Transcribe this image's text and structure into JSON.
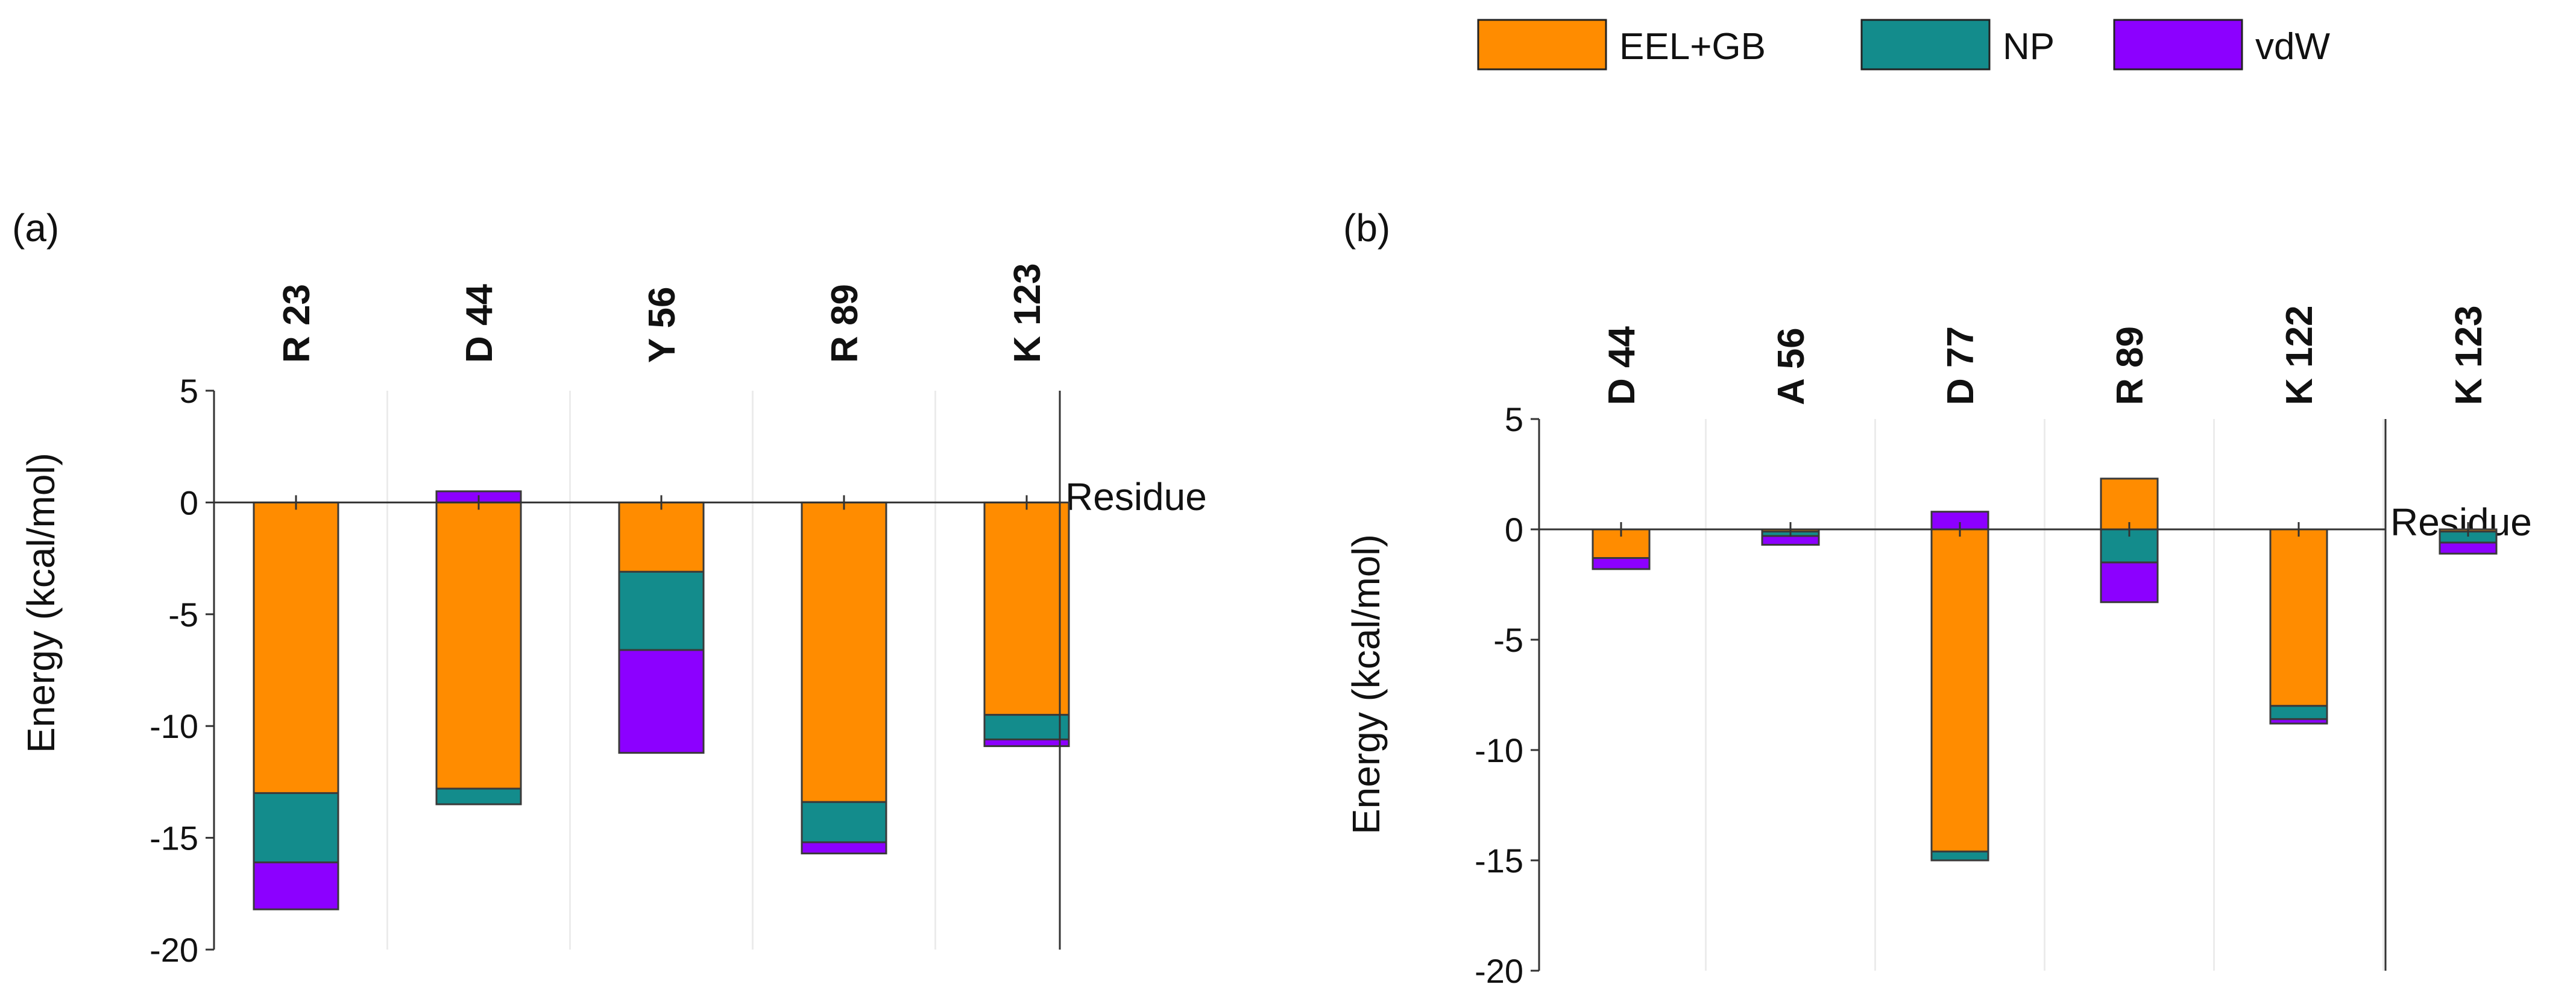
{
  "colors": {
    "EEL+GB": "#FF8C00",
    "NP": "#138C8C",
    "vdW": "#8C00FF"
  },
  "legend": {
    "entries": [
      "EEL+GB",
      "NP",
      "vdW"
    ]
  },
  "chart_data": [
    {
      "type": "bar",
      "stacked": true,
      "panel_label": "(a)",
      "title": "",
      "xlabel": "Residue",
      "ylabel": "Energy (kcal/mol)",
      "ylim": [
        -20,
        5
      ],
      "yticks": [
        5,
        0,
        -5,
        -10,
        -15,
        -20
      ],
      "grid": false,
      "categories": [
        "R 23",
        "D 44",
        "Y 56",
        "R 89",
        "K 123"
      ],
      "series": [
        {
          "name": "EEL+GB",
          "values": [
            -13.0,
            -12.8,
            -3.1,
            -13.4,
            -9.5
          ]
        },
        {
          "name": "NP",
          "values": [
            -3.1,
            -0.7,
            -3.5,
            -1.8,
            -1.1
          ]
        },
        {
          "name": "vdW",
          "values": [
            -2.1,
            0.5,
            -4.6,
            -0.5,
            -0.3
          ]
        }
      ]
    },
    {
      "type": "bar",
      "stacked": true,
      "panel_label": "(b)",
      "title": "",
      "xlabel": "Residue",
      "ylabel": "Energy (kcal/mol)",
      "ylim": [
        -20,
        5
      ],
      "yticks": [
        5,
        0,
        -5,
        -10,
        -15,
        -20
      ],
      "grid": false,
      "categories": [
        "D 44",
        "A 56",
        "D 77",
        "R 89",
        "K 122",
        "K 123"
      ],
      "series": [
        {
          "name": "EEL+GB",
          "values": [
            -1.3,
            -0.1,
            -14.6,
            2.3,
            -8.0,
            -0.1
          ]
        },
        {
          "name": "NP",
          "values": [
            0,
            -0.2,
            -0.4,
            -1.5,
            -0.6,
            -0.5
          ]
        },
        {
          "name": "vdW",
          "values": [
            -0.5,
            -0.4,
            0.8,
            -1.8,
            -0.2,
            -0.5
          ]
        }
      ]
    }
  ]
}
